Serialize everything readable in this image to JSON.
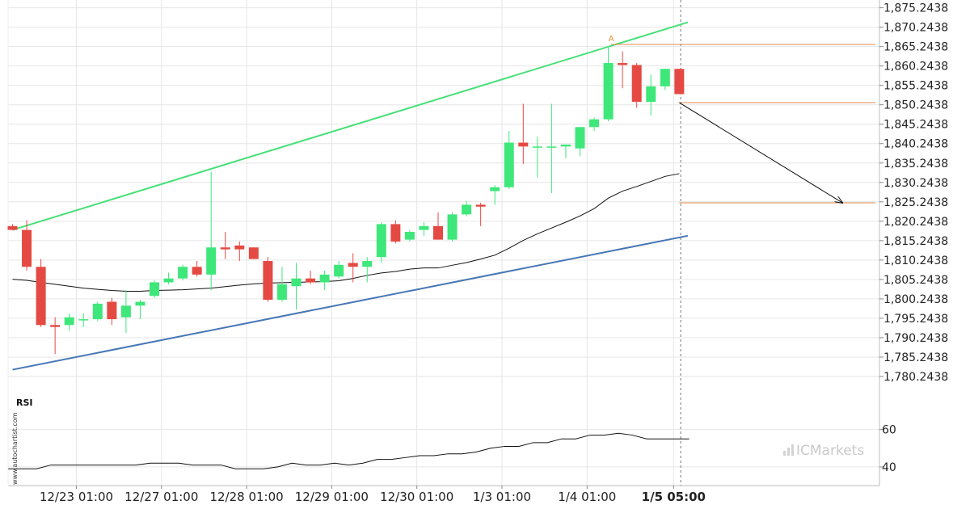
{
  "chart_data": {
    "type": "candlestick",
    "price_axis": {
      "ylim": [
        1775.2438,
        1877.2438
      ],
      "ticks": [
        "1,875.2438",
        "1,870.2438",
        "1,865.2438",
        "1,860.2438",
        "1,855.2438",
        "1,850.2438",
        "1,845.2438",
        "1,840.2438",
        "1,835.2438",
        "1,830.2438",
        "1,825.2438",
        "1,820.2438",
        "1,815.2438",
        "1,810.2438",
        "1,805.2438",
        "1,800.2438",
        "1,795.2438",
        "1,790.2438",
        "1,785.2438",
        "1,780.2438"
      ]
    },
    "time_axis": {
      "labels": [
        {
          "text": "12/23 01:00",
          "bar": 4.5,
          "bold": false
        },
        {
          "text": "12/27 01:00",
          "bar": 10.5,
          "bold": false
        },
        {
          "text": "12/28 01:00",
          "bar": 16.5,
          "bold": false
        },
        {
          "text": "12/29 01:00",
          "bar": 22.5,
          "bold": false
        },
        {
          "text": "12/30 01:00",
          "bar": 28.5,
          "bold": false
        },
        {
          "text": "1/3 01:00",
          "bar": 34.5,
          "bold": false
        },
        {
          "text": "1/4 01:00",
          "bar": 40.5,
          "bold": false
        },
        {
          "text": "1/5 05:00",
          "bar": 46.6,
          "bold": true
        }
      ]
    },
    "candles": [
      {
        "o": 1819.0,
        "h": 1819.5,
        "l": 1818.0,
        "c": 1818.0
      },
      {
        "o": 1818.0,
        "h": 1820.5,
        "l": 1807.5,
        "c": 1808.5
      },
      {
        "o": 1808.5,
        "h": 1810.5,
        "l": 1793.0,
        "c": 1793.5
      },
      {
        "o": 1793.5,
        "h": 1795.5,
        "l": 1786.0,
        "c": 1793.0
      },
      {
        "o": 1793.5,
        "h": 1796.5,
        "l": 1792.0,
        "c": 1795.5
      },
      {
        "o": 1795.0,
        "h": 1796.5,
        "l": 1793.0,
        "c": 1795.0
      },
      {
        "o": 1795.0,
        "h": 1799.5,
        "l": 1794.5,
        "c": 1799.0
      },
      {
        "o": 1799.5,
        "h": 1800.5,
        "l": 1793.5,
        "c": 1795.0
      },
      {
        "o": 1795.5,
        "h": 1802.5,
        "l": 1791.5,
        "c": 1798.5
      },
      {
        "o": 1798.5,
        "h": 1800.0,
        "l": 1795.0,
        "c": 1799.5
      },
      {
        "o": 1801.0,
        "h": 1805.0,
        "l": 1800.5,
        "c": 1804.5
      },
      {
        "o": 1804.5,
        "h": 1807.0,
        "l": 1804.0,
        "c": 1805.5
      },
      {
        "o": 1805.5,
        "h": 1809.0,
        "l": 1805.0,
        "c": 1808.5
      },
      {
        "o": 1808.5,
        "h": 1810.0,
        "l": 1806.0,
        "c": 1806.5
      },
      {
        "o": 1806.5,
        "h": 1833.0,
        "l": 1802.5,
        "c": 1813.5
      },
      {
        "o": 1813.5,
        "h": 1817.5,
        "l": 1810.5,
        "c": 1813.0
      },
      {
        "o": 1814.0,
        "h": 1815.0,
        "l": 1810.0,
        "c": 1813.0
      },
      {
        "o": 1813.5,
        "h": 1813.5,
        "l": 1810.5,
        "c": 1810.5
      },
      {
        "o": 1810.0,
        "h": 1811.0,
        "l": 1799.5,
        "c": 1800.0
      },
      {
        "o": 1800.0,
        "h": 1808.5,
        "l": 1799.5,
        "c": 1804.0
      },
      {
        "o": 1803.5,
        "h": 1809.5,
        "l": 1797.5,
        "c": 1805.5
      },
      {
        "o": 1805.5,
        "h": 1807.5,
        "l": 1804.0,
        "c": 1804.5
      },
      {
        "o": 1804.5,
        "h": 1807.5,
        "l": 1802.5,
        "c": 1806.5
      },
      {
        "o": 1806.0,
        "h": 1810.0,
        "l": 1805.5,
        "c": 1809.0
      },
      {
        "o": 1809.5,
        "h": 1812.0,
        "l": 1804.5,
        "c": 1808.5
      },
      {
        "o": 1808.5,
        "h": 1811.0,
        "l": 1804.5,
        "c": 1810.0
      },
      {
        "o": 1811.0,
        "h": 1820.0,
        "l": 1809.5,
        "c": 1819.5
      },
      {
        "o": 1819.5,
        "h": 1820.5,
        "l": 1814.5,
        "c": 1815.0
      },
      {
        "o": 1815.5,
        "h": 1818.0,
        "l": 1815.0,
        "c": 1817.5
      },
      {
        "o": 1818.0,
        "h": 1820.0,
        "l": 1816.5,
        "c": 1819.0
      },
      {
        "o": 1819.0,
        "h": 1822.5,
        "l": 1815.5,
        "c": 1815.5
      },
      {
        "o": 1815.5,
        "h": 1822.5,
        "l": 1815.0,
        "c": 1822.0
      },
      {
        "o": 1822.0,
        "h": 1825.5,
        "l": 1821.5,
        "c": 1824.5
      },
      {
        "o": 1824.5,
        "h": 1825.0,
        "l": 1819.0,
        "c": 1824.0
      },
      {
        "o": 1828.0,
        "h": 1829.5,
        "l": 1824.5,
        "c": 1829.0
      },
      {
        "o": 1829.0,
        "h": 1843.5,
        "l": 1828.5,
        "c": 1840.5
      },
      {
        "o": 1840.5,
        "h": 1850.5,
        "l": 1835.0,
        "c": 1839.5
      },
      {
        "o": 1839.5,
        "h": 1842.0,
        "l": 1831.5,
        "c": 1839.5
      },
      {
        "o": 1839.5,
        "h": 1850.5,
        "l": 1827.5,
        "c": 1839.5
      },
      {
        "o": 1839.5,
        "h": 1840.0,
        "l": 1836.5,
        "c": 1840.0
      },
      {
        "o": 1839.0,
        "h": 1844.0,
        "l": 1837.0,
        "c": 1844.5
      },
      {
        "o": 1844.5,
        "h": 1847.0,
        "l": 1843.5,
        "c": 1846.5
      },
      {
        "o": 1846.5,
        "h": 1865.0,
        "l": 1846.0,
        "c": 1861.0
      },
      {
        "o": 1861.0,
        "h": 1864.0,
        "l": 1854.5,
        "c": 1860.5
      },
      {
        "o": 1860.5,
        "h": 1861.0,
        "l": 1849.5,
        "c": 1851.0
      },
      {
        "o": 1851.0,
        "h": 1858.0,
        "l": 1847.5,
        "c": 1855.0
      },
      {
        "o": 1855.0,
        "h": 1859.5,
        "l": 1854.0,
        "c": 1859.5
      },
      {
        "o": 1859.5,
        "h": 1859.5,
        "l": 1853.0,
        "c": 1853.0
      }
    ],
    "moving_average": [
      1805.3,
      1805.0,
      1804.5,
      1804.0,
      1803.5,
      1803.0,
      1802.7,
      1802.4,
      1802.2,
      1802.2,
      1802.4,
      1802.5,
      1802.6,
      1802.8,
      1803.0,
      1803.4,
      1803.8,
      1804.1,
      1804.3,
      1804.4,
      1804.5,
      1804.6,
      1804.7,
      1804.9,
      1805.5,
      1806.3,
      1806.9,
      1807.3,
      1807.9,
      1808.2,
      1808.2,
      1808.9,
      1809.6,
      1810.5,
      1811.5,
      1813.3,
      1815.3,
      1817.0,
      1818.5,
      1820.0,
      1821.6,
      1823.5,
      1826.2,
      1828.0,
      1829.2,
      1830.5,
      1831.8,
      1832.5
    ],
    "channel": {
      "upper": {
        "bar_start": 0,
        "y_start": 1818.0,
        "bar_end": 47.6,
        "y_end": 1871.5
      },
      "lower": {
        "bar_start": 0,
        "y_start": 1782.0,
        "bar_end": 47.6,
        "y_end": 1816.5
      }
    },
    "levels": [
      {
        "price": 1865.8,
        "bar_start": 42.2
      },
      {
        "price": 1850.8,
        "bar_start": 47.0
      },
      {
        "price": 1825.0,
        "bar_start": 47.0
      }
    ],
    "forecast_arrow": {
      "from_bar": 47.0,
      "from_price": 1850.8,
      "to_bar": 58.5,
      "to_price": 1825.0
    },
    "pattern_point": {
      "label": "A",
      "bar": 42.2,
      "price": 1866.6
    },
    "rsi": {
      "label": "RSI",
      "ylim": [
        30,
        78
      ],
      "ticks": [
        "60",
        "40"
      ],
      "values": [
        39,
        39,
        39,
        41,
        41,
        41,
        41,
        41,
        41,
        41,
        42,
        42,
        42,
        41,
        41,
        41,
        39,
        39,
        39,
        40,
        42,
        41,
        41,
        42,
        41,
        42,
        44,
        44,
        45,
        46,
        46,
        47,
        47,
        48,
        50,
        51,
        51,
        53,
        53,
        55,
        55,
        57,
        57,
        58,
        57,
        55,
        55,
        55,
        55
      ]
    },
    "current_time_marker_bar": 47.1
  },
  "watermark": "www.autochartist.com",
  "brand": "ICMarkets",
  "colors": {
    "bull": "#3ee77a",
    "bear": "#e44a43",
    "upper_channel": "#47e077",
    "lower_channel": "#4676b6",
    "level": "#e28a4b",
    "line": "#111111",
    "grid": "#e6e6e6",
    "axis": "#bbbbbb"
  }
}
